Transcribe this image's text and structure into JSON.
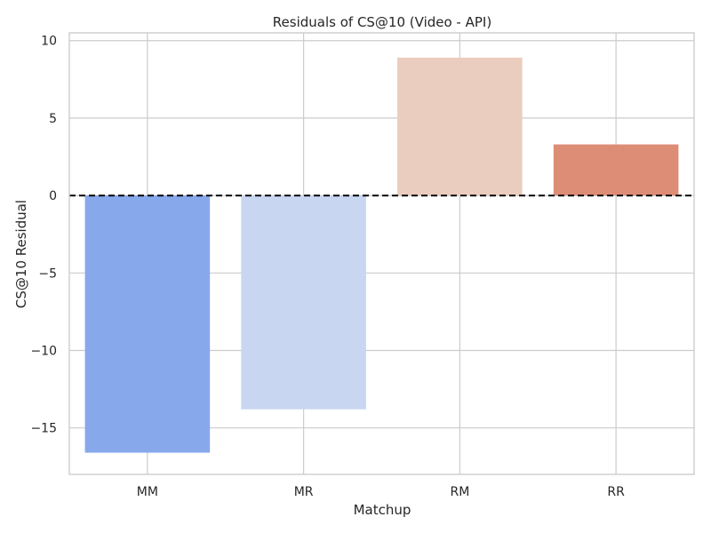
{
  "chart_data": {
    "type": "bar",
    "title": "Residuals of CS@10 (Video - API)",
    "xlabel": "Matchup",
    "ylabel": "CS@10 Residual",
    "categories": [
      "MM",
      "MR",
      "RM",
      "RR"
    ],
    "values": [
      -16.6,
      -13.8,
      8.9,
      3.3
    ],
    "colors": [
      "#88a8ec",
      "#c8d6f1",
      "#eacdbe",
      "#dd8d75"
    ],
    "ylim": [
      -18,
      10.5
    ],
    "yticks": [
      10,
      5,
      0,
      -5,
      -10,
      -15
    ],
    "ytick_labels": [
      "10",
      "5",
      "0",
      "−5",
      "−10",
      "−15"
    ],
    "reference_line": {
      "y": 0,
      "style": "dashed",
      "color": "#000000"
    },
    "grid": true
  }
}
